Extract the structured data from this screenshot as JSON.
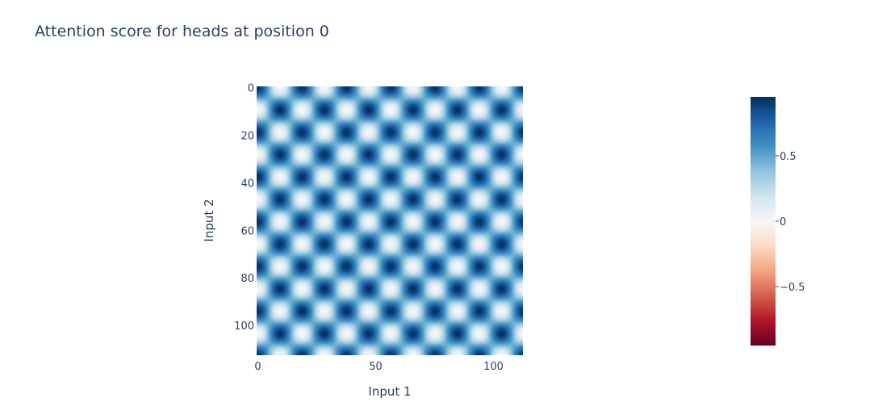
{
  "chart_data": {
    "type": "heatmap",
    "title": "Attention score for heads at position 0",
    "xlabel": "Input 1",
    "ylabel": "Input 2",
    "x_range": [
      0,
      112
    ],
    "y_range": [
      0,
      112
    ],
    "y_reversed": true,
    "x_ticks": [
      0,
      50,
      100
    ],
    "y_ticks": [
      0,
      20,
      40,
      60,
      80,
      100
    ],
    "grid_size": 113,
    "period": 18.8,
    "pattern": "0.5 * (cos(2*pi*x/period) * cos(2*pi*y/period) + 1)",
    "colorscale": "RdBu",
    "colorscale_stops": [
      [
        0.0,
        "#67001f"
      ],
      [
        0.1,
        "#b2182b"
      ],
      [
        0.2,
        "#d6604d"
      ],
      [
        0.3,
        "#f4a582"
      ],
      [
        0.4,
        "#fddbc7"
      ],
      [
        0.5,
        "#f7f7f7"
      ],
      [
        0.6,
        "#d1e5f0"
      ],
      [
        0.7,
        "#92c5de"
      ],
      [
        0.8,
        "#4393c3"
      ],
      [
        0.9,
        "#2166ac"
      ],
      [
        1.0,
        "#053061"
      ]
    ],
    "zmin": -0.95,
    "zmax": 0.95,
    "colorbar_ticks": [
      {
        "value": 0.5,
        "label": "0.5"
      },
      {
        "value": 0,
        "label": "0"
      },
      {
        "value": -0.5,
        "label": "−0.5"
      }
    ]
  }
}
